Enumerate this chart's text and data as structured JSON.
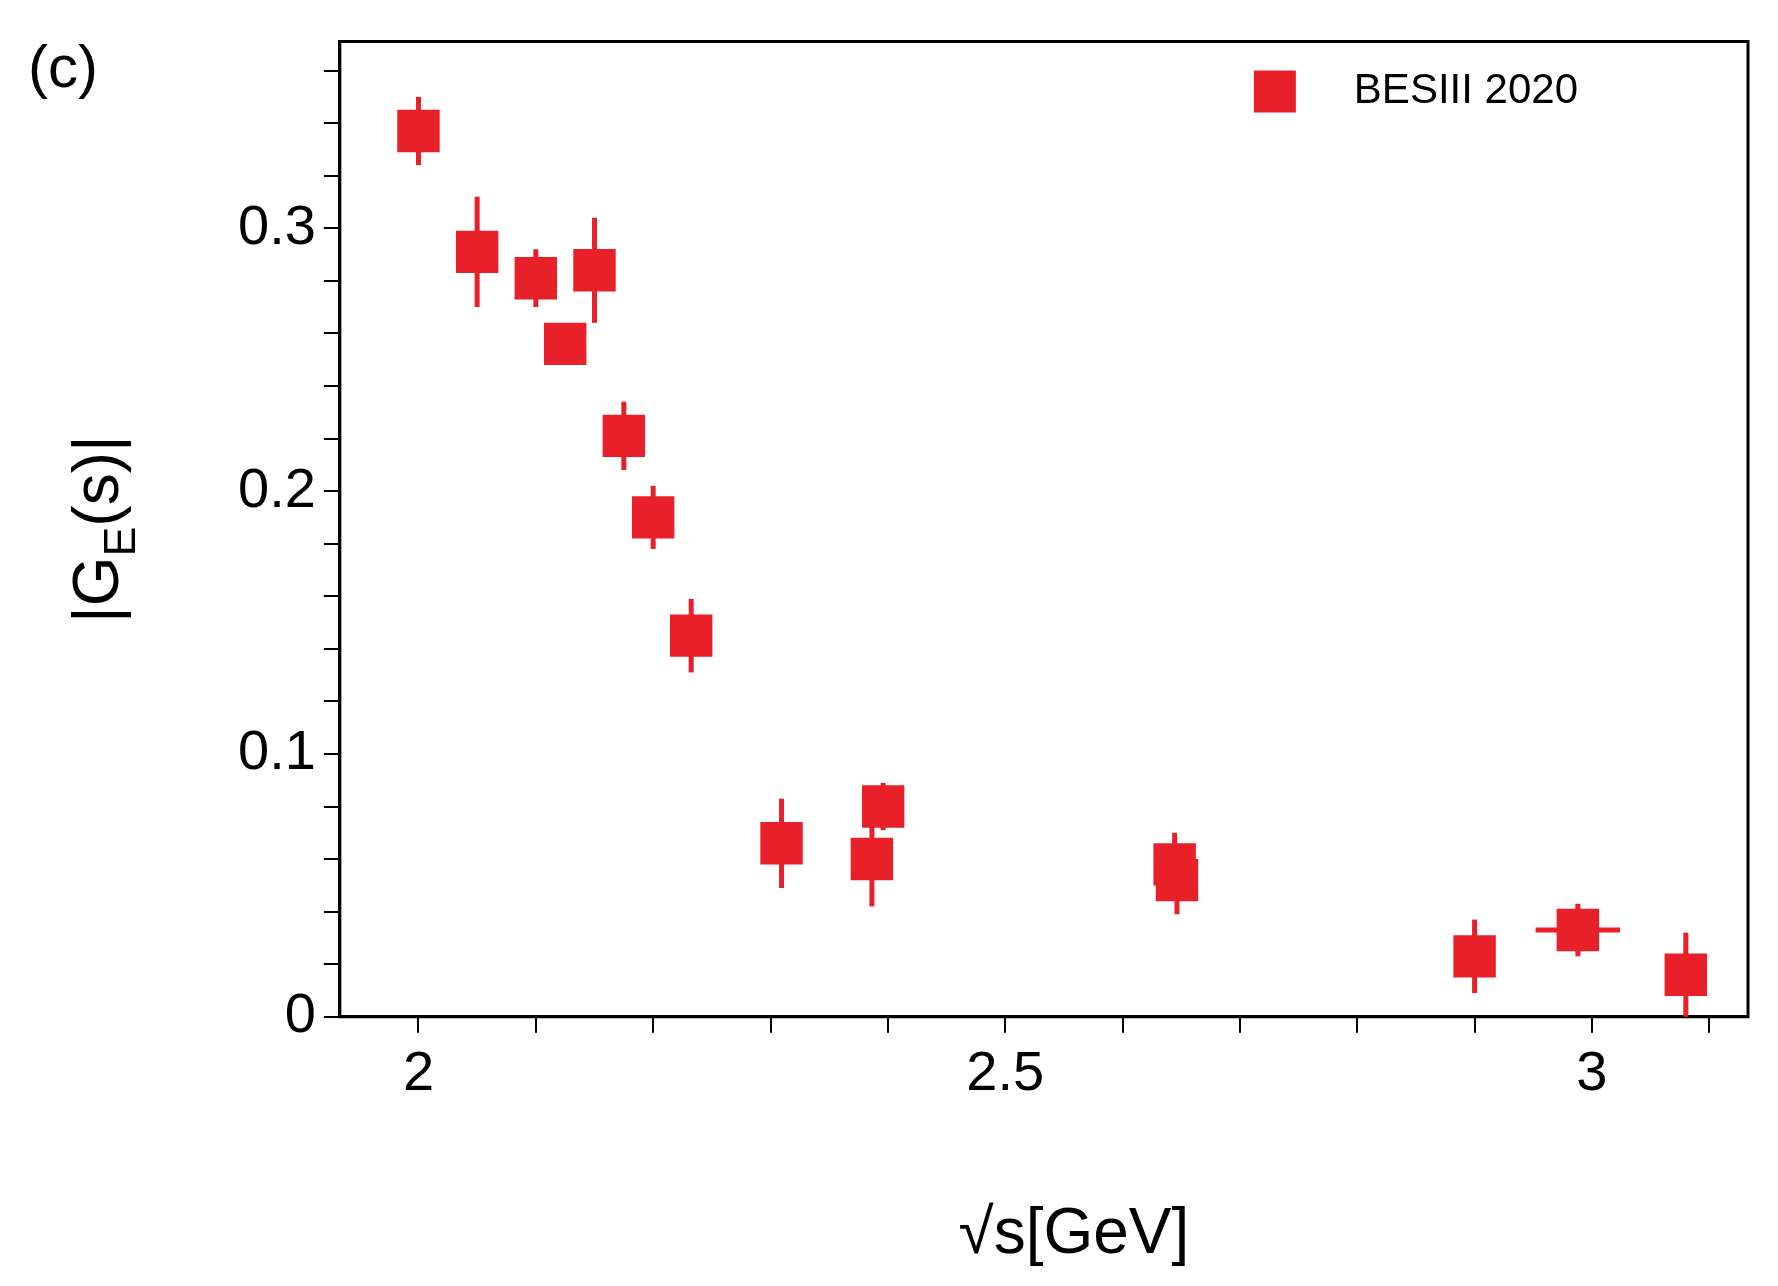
{
  "chart_data": {
    "type": "scatter",
    "xlabel": "√s[GeV]",
    "ylabel": "|G$_{E}$(s)|",
    "annotations": [
      "(c)"
    ],
    "xlim": [
      1.933,
      3.133
    ],
    "xticks": [
      {
        "value": 2,
        "label": "2"
      },
      {
        "value": 2.1,
        "label": null
      },
      {
        "value": 2.2,
        "label": null
      },
      {
        "value": 2.3,
        "label": null
      },
      {
        "value": 2.4,
        "label": null
      },
      {
        "value": 2.5,
        "label": "2.5"
      },
      {
        "value": 2.6,
        "label": null
      },
      {
        "value": 2.7,
        "label": null
      },
      {
        "value": 2.8,
        "label": null
      },
      {
        "value": 2.9,
        "label": null
      },
      {
        "value": 3,
        "label": "3"
      },
      {
        "value": 3.1,
        "label": null
      }
    ],
    "ylim": [
      0,
      0.371
    ],
    "yticks": [
      0,
      {
        "value": 0.02,
        "label": null
      },
      {
        "value": 0.04,
        "label": null
      },
      {
        "value": 0.06,
        "label": null
      },
      {
        "value": 0.08,
        "label": null
      },
      0.1,
      {
        "value": 0.12,
        "label": null
      },
      {
        "value": 0.14,
        "label": null
      },
      {
        "value": 0.16,
        "label": null
      },
      {
        "value": 0.18,
        "label": null
      },
      0.2,
      {
        "value": 0.22,
        "label": null
      },
      {
        "value": 0.24,
        "label": null
      },
      {
        "value": 0.26,
        "label": null
      },
      {
        "value": 0.28,
        "label": null
      },
      0.3,
      {
        "value": 0.32,
        "label": null
      },
      {
        "value": 0.34,
        "label": null
      },
      {
        "value": 0.36,
        "label": null
      }
    ],
    "legend": "top right",
    "marker": "square",
    "series": [
      {
        "name": "BESIII 2020",
        "color": "#e8202a",
        "x": [
          2.0,
          2.05,
          2.1,
          2.125,
          2.15,
          2.175,
          2.2,
          2.2324,
          2.3094,
          2.3864,
          2.396,
          2.6444,
          2.6464,
          2.9,
          2.988,
          3.08
        ],
        "values": [
          0.337,
          0.291,
          0.281,
          0.256,
          0.284,
          0.221,
          0.19,
          0.145,
          0.066,
          0.06,
          0.08,
          0.058,
          0.052,
          0.023,
          0.033,
          0.016
        ],
        "errors": [
          0.013,
          0.021,
          0.011,
          0.005,
          0.02,
          0.013,
          0.012,
          0.014,
          0.017,
          0.018,
          0.009,
          0.012,
          0.013,
          0.014,
          0.01,
          0.016
        ],
        "xerrors": [
          null,
          null,
          null,
          null,
          null,
          null,
          null,
          null,
          null,
          null,
          null,
          null,
          null,
          null,
          0.036,
          null
        ]
      }
    ]
  }
}
